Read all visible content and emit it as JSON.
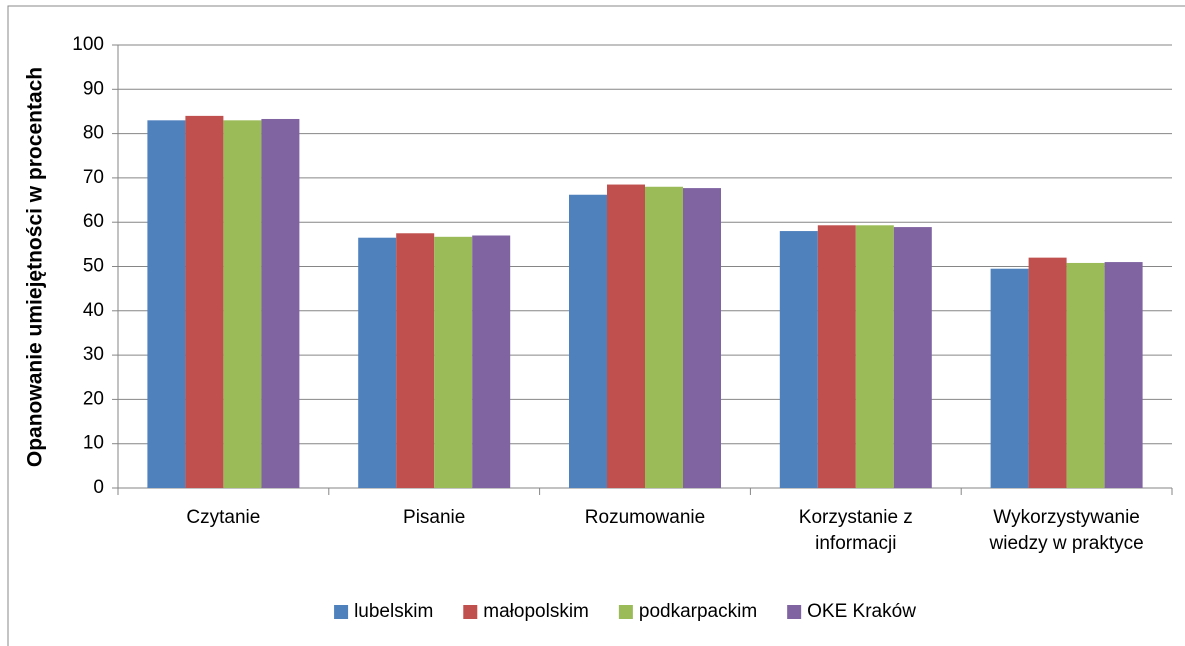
{
  "chart_data": {
    "type": "bar",
    "y_label": "Opanowanie umiejętności w procentach",
    "categories": [
      "Czytanie",
      "Pisanie",
      "Rozumowanie",
      "Korzystanie z informacji",
      "Wykorzystywanie wiedzy w praktyce"
    ],
    "series": [
      {
        "name": "lubelskim",
        "color": "#4f81bd",
        "values": [
          83,
          56.5,
          66.2,
          58,
          49.5
        ]
      },
      {
        "name": "małopolskim",
        "color": "#c0504d",
        "values": [
          84,
          57.5,
          68.5,
          59.3,
          52
        ]
      },
      {
        "name": "podkarpackim",
        "color": "#9bbb59",
        "values": [
          83,
          56.7,
          68,
          59.3,
          50.8
        ]
      },
      {
        "name": "OKE Kraków",
        "color": "#8064a2",
        "values": [
          83.3,
          57,
          67.7,
          58.9,
          51
        ]
      }
    ],
    "ylim": [
      0,
      100
    ],
    "yticks": [
      0,
      10,
      20,
      30,
      40,
      50,
      60,
      70,
      80,
      90,
      100
    ],
    "grid": true,
    "legend": "bottom"
  }
}
